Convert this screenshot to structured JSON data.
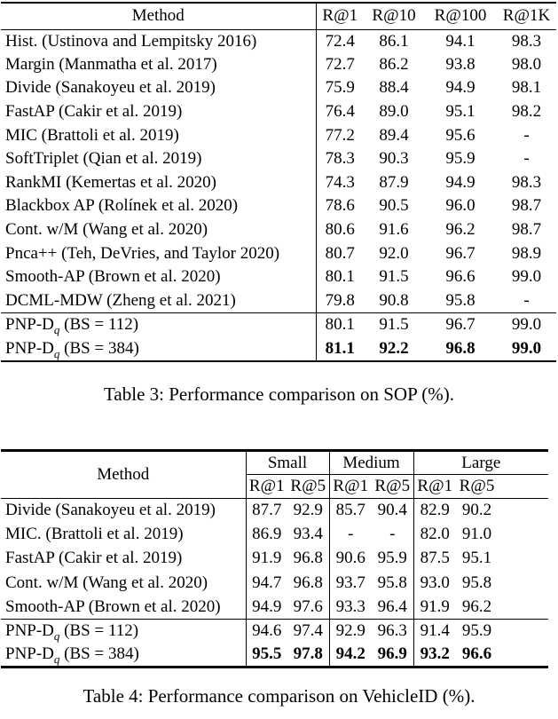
{
  "table3": {
    "caption": "Table 3: Performance comparison on SOP (%).",
    "columns": [
      "Method",
      "R@1",
      "R@10",
      "R@100",
      "R@1K"
    ],
    "rows": [
      {
        "method": "Hist. (Ustinova and Lempitsky 2016)",
        "values": [
          "72.4",
          "86.1",
          "94.1",
          "98.3"
        ],
        "bold": false
      },
      {
        "method": "Margin (Manmatha et al. 2017)",
        "values": [
          "72.7",
          "86.2",
          "93.8",
          "98.0"
        ],
        "bold": false
      },
      {
        "method": "Divide (Sanakoyeu et al. 2019)",
        "values": [
          "75.9",
          "88.4",
          "94.9",
          "98.1"
        ],
        "bold": false
      },
      {
        "method": "FastAP (Cakir et al. 2019)",
        "values": [
          "76.4",
          "89.0",
          "95.1",
          "98.2"
        ],
        "bold": false
      },
      {
        "method": "MIC (Brattoli et al. 2019)",
        "values": [
          "77.2",
          "89.4",
          "95.6",
          "-"
        ],
        "bold": false
      },
      {
        "method": "SoftTriplet (Qian et al. 2019)",
        "values": [
          "78.3",
          "90.3",
          "95.9",
          "-"
        ],
        "bold": false
      },
      {
        "method": "RankMI (Kemertas et al. 2020)",
        "values": [
          "74.3",
          "87.9",
          "94.9",
          "98.3"
        ],
        "bold": false
      },
      {
        "method": "Blackbox AP (Rolínek et al. 2020)",
        "values": [
          "78.6",
          "90.5",
          "96.0",
          "98.7"
        ],
        "bold": false
      },
      {
        "method": "Cont. w/M (Wang et al. 2020)",
        "values": [
          "80.6",
          "91.6",
          "96.2",
          "98.7"
        ],
        "bold": false
      },
      {
        "method": "Pnca++ (Teh, DeVries, and Taylor 2020)",
        "values": [
          "80.7",
          "92.0",
          "96.7",
          "98.9"
        ],
        "bold": false
      },
      {
        "method": "Smooth-AP (Brown et al. 2020)",
        "values": [
          "80.1",
          "91.5",
          "96.6",
          "99.0"
        ],
        "bold": false
      },
      {
        "method": "DCML-MDW (Zheng et al. 2021)",
        "values": [
          "79.8",
          "90.8",
          "95.8",
          "-"
        ],
        "bold": false
      }
    ],
    "final_rows": [
      {
        "method": {
          "text": "PNP-D",
          "sub": "q",
          "after": " (BS = 112)"
        },
        "values": [
          "80.1",
          "91.5",
          "96.7",
          "99.0"
        ],
        "bold": false
      },
      {
        "method": {
          "text": "PNP-D",
          "sub": "q",
          "after": " (BS = 384)"
        },
        "values": [
          "81.1",
          "92.2",
          "96.8",
          "99.0"
        ],
        "bold": true
      }
    ]
  },
  "table4": {
    "caption": "Table 4: Performance comparison on VehicleID (%).",
    "method_header": "Method",
    "groups": [
      "Small",
      "Medium",
      "Large"
    ],
    "sub_columns": [
      "R@1",
      "R@5"
    ],
    "rows": [
      {
        "method": "Divide (Sanakoyeu et al. 2019)",
        "values": [
          "87.7",
          "92.9",
          "85.7",
          "90.4",
          "82.9",
          "90.2"
        ],
        "bold": false
      },
      {
        "method": "MIC. (Brattoli et al. 2019)",
        "values": [
          "86.9",
          "93.4",
          "-",
          "-",
          "82.0",
          "91.0"
        ],
        "bold": false
      },
      {
        "method": "FastAP (Cakir et al. 2019)",
        "values": [
          "91.9",
          "96.8",
          "90.6",
          "95.9",
          "87.5",
          "95.1"
        ],
        "bold": false
      },
      {
        "method": "Cont. w/M (Wang et al. 2020)",
        "values": [
          "94.7",
          "96.8",
          "93.7",
          "95.8",
          "93.0",
          "95.8"
        ],
        "bold": false
      },
      {
        "method": "Smooth-AP (Brown et al. 2020)",
        "values": [
          "94.9",
          "97.6",
          "93.3",
          "96.4",
          "91.9",
          "96.2"
        ],
        "bold": false
      }
    ],
    "final_rows": [
      {
        "method": {
          "text": "PNP-D",
          "sub": "q",
          "after": " (BS = 112)"
        },
        "values": [
          "94.6",
          "97.4",
          "92.9",
          "96.3",
          "91.4",
          "95.9"
        ],
        "bold": false
      },
      {
        "method": {
          "text": "PNP-D",
          "sub": "q",
          "after": " (BS = 384)"
        },
        "values": [
          "95.5",
          "97.8",
          "94.2",
          "96.9",
          "93.2",
          "96.6"
        ],
        "bold": true
      }
    ]
  }
}
